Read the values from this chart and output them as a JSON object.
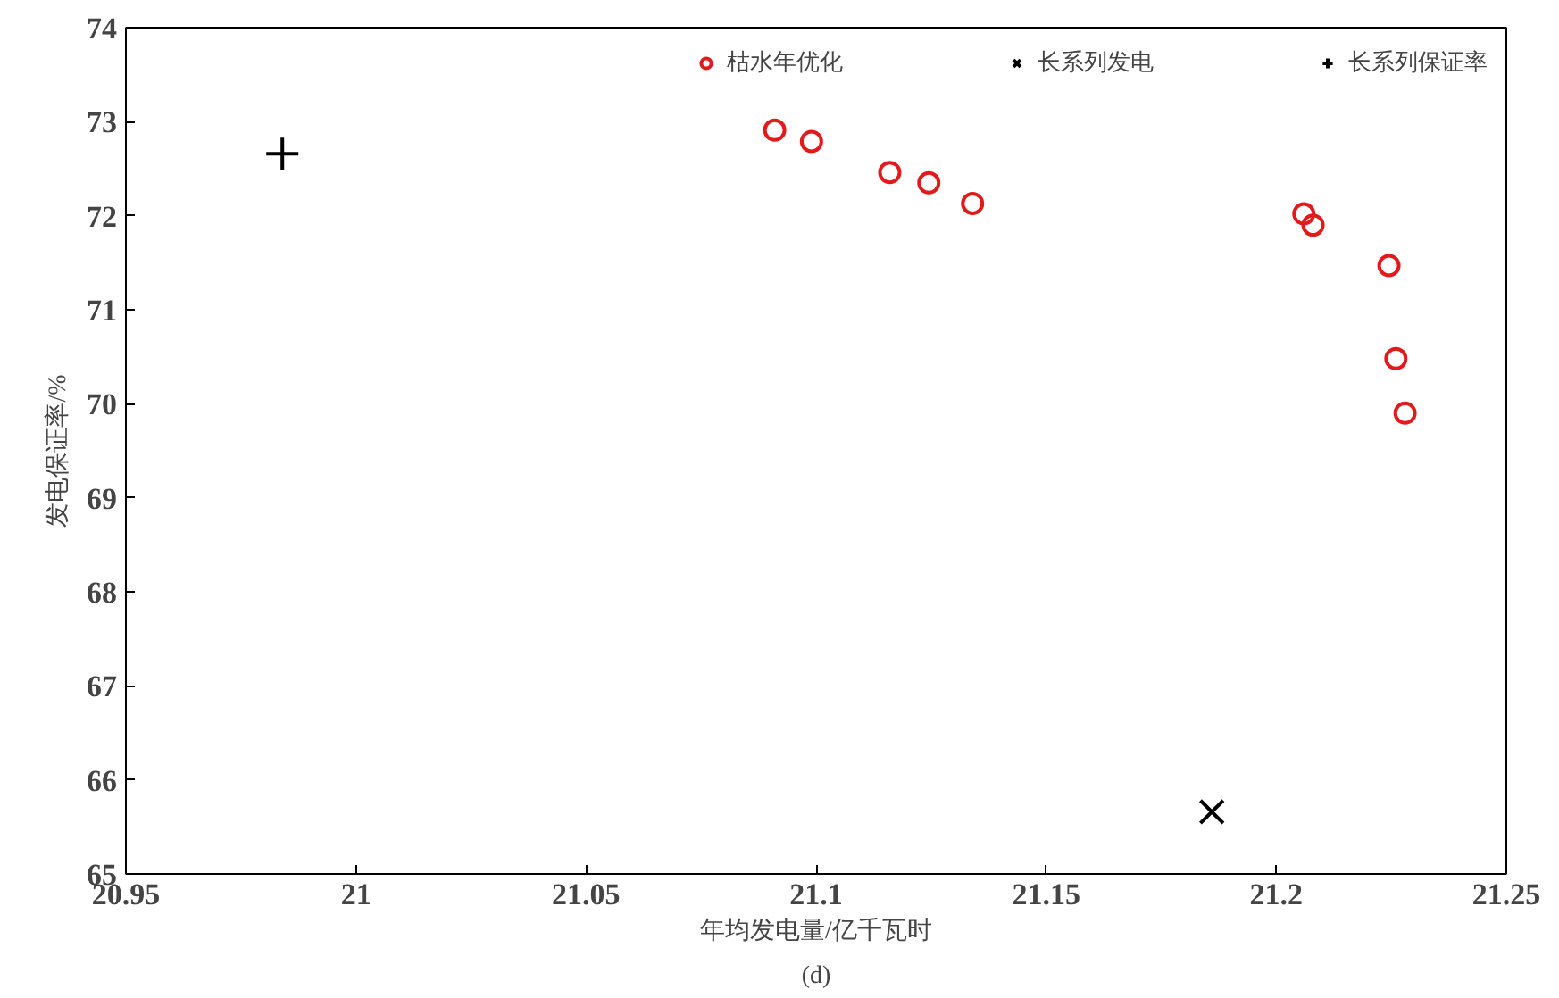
{
  "chart_data": {
    "type": "scatter",
    "xlabel": "年均发电量/亿千瓦时",
    "ylabel": "发电保证率/%",
    "annotations": [
      "(d)"
    ],
    "xlim": [
      20.95,
      21.25
    ],
    "xticks": [
      20.95,
      21,
      21.05,
      21.1,
      21.15,
      21.2,
      21.25
    ],
    "ylim": [
      65,
      74
    ],
    "yticks": [
      65,
      66,
      67,
      68,
      69,
      70,
      71,
      72,
      73,
      74
    ],
    "grid": false,
    "legend": "top",
    "series": [
      {
        "name": "枯水年优化",
        "color": "#e31a1c",
        "marker": "circle",
        "x": [
          21.091,
          21.099,
          21.116,
          21.1245,
          21.134,
          21.206,
          21.208,
          21.2245,
          21.226,
          21.228
        ],
        "values": [
          72.91,
          72.79,
          72.46,
          72.35,
          72.13,
          72.02,
          71.9,
          71.47,
          70.48,
          69.9
        ]
      },
      {
        "name": "长系列发电",
        "color": "#000000",
        "marker": "cross",
        "x": [
          21.186
        ],
        "values": [
          65.66
        ]
      },
      {
        "name": "长系列保证率",
        "color": "#000000",
        "marker": "plus",
        "x": [
          20.984
        ],
        "values": [
          72.66
        ]
      }
    ]
  }
}
